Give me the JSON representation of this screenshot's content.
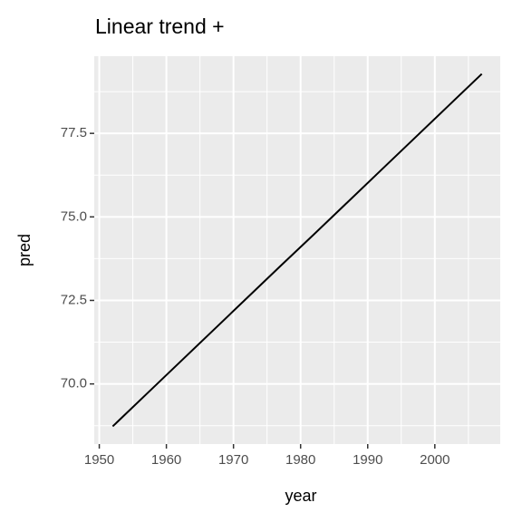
{
  "chart_data": {
    "type": "line",
    "title": "Linear trend +",
    "x_label": "year",
    "y_label": "pred",
    "x": [
      1952,
      1957,
      1962,
      1967,
      1972,
      1977,
      1982,
      1987,
      1992,
      1997,
      2002,
      2007
    ],
    "series": [
      {
        "color": "#000000",
        "values": [
          68.73,
          69.69,
          70.65,
          71.61,
          72.57,
          73.53,
          74.48,
          75.44,
          76.4,
          77.36,
          78.32,
          79.28
        ]
      }
    ],
    "xlim": [
      1949.25,
      2009.75
    ],
    "xticks": [
      1950,
      1960,
      1970,
      1980,
      1990,
      2000
    ],
    "ylim": [
      68.2,
      79.81
    ],
    "yticks": [
      {
        "value": 70,
        "label": "70.0"
      },
      {
        "value": 72.5,
        "label": "72.5"
      },
      {
        "value": 75,
        "label": "75.0"
      },
      {
        "value": 77.5,
        "label": "77.5"
      }
    ],
    "grid": true
  }
}
